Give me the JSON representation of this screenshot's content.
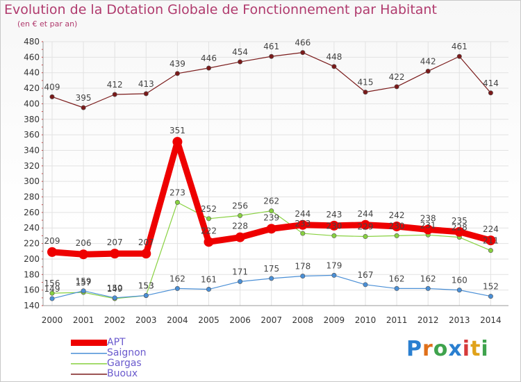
{
  "title": "Evolution de la Dotation Globale de Fonctionnement par Habitant",
  "subtitle": "(en € et par an)",
  "brand": {
    "text": "Proxiti",
    "letters": [
      "P",
      "r",
      "o",
      "x",
      "i",
      "t",
      "i"
    ],
    "colors": [
      "#2a7fd0",
      "#e0701a",
      "#3fa34d",
      "#2a7fd0",
      "#d63a3a",
      "#e0a21a",
      "#3fa34d"
    ]
  },
  "chart_data": {
    "type": "line",
    "title": "Evolution de la Dotation Globale de Fonctionnement par Habitant",
    "subtitle": "(en € et par an)",
    "xlabel": "",
    "ylabel": "",
    "x": [
      "2000",
      "2001",
      "2002",
      "2003",
      "2004",
      "2005",
      "2006",
      "2007",
      "2008",
      "2009",
      "2010",
      "2011",
      "2012",
      "2013",
      "2014"
    ],
    "ylim": [
      140,
      480
    ],
    "yticks": [
      140,
      160,
      180,
      200,
      220,
      240,
      260,
      280,
      300,
      320,
      340,
      360,
      380,
      400,
      420,
      440,
      460,
      480
    ],
    "grid": true,
    "legend": "bottom-left",
    "series": [
      {
        "name": "APT",
        "color": "#ee0000",
        "values": [
          209,
          206,
          207,
          207,
          351,
          222,
          228,
          239,
          244,
          243,
          244,
          242,
          238,
          235,
          224
        ],
        "labels": [
          "209",
          "206",
          "207",
          "207",
          "351",
          "222",
          "228",
          "239",
          "244",
          "243",
          "244",
          "242",
          "238",
          "235",
          "224"
        ]
      },
      {
        "name": "Saignon",
        "color": "#4a8fd6",
        "values": [
          149,
          159,
          150,
          153,
          162,
          161,
          171,
          175,
          178,
          179,
          167,
          162,
          162,
          160,
          152
        ],
        "labels": [
          "149",
          "159",
          "150",
          "153",
          "162",
          "161",
          "171",
          "175",
          "178",
          "179",
          "167",
          "162",
          "162",
          "160",
          "152"
        ]
      },
      {
        "name": "Gargas",
        "color": "#88d140",
        "values": [
          156,
          157,
          149,
          153,
          273,
          252,
          256,
          262,
          233,
          230,
          229,
          230,
          231,
          228,
          211
        ],
        "labels": [
          "156",
          "157",
          "149",
          "153",
          "273",
          "252",
          "256",
          "262",
          "233",
          "230",
          "229",
          "230",
          "231",
          "228",
          "211"
        ]
      },
      {
        "name": "Buoux",
        "color": "#7a1a1a",
        "values": [
          409,
          395,
          412,
          413,
          439,
          446,
          454,
          461,
          466,
          448,
          415,
          422,
          442,
          461,
          414
        ],
        "labels": [
          "409",
          "395",
          "412",
          "413",
          "439",
          "446",
          "454",
          "461",
          "466",
          "448",
          "415",
          "422",
          "442",
          "461",
          "414"
        ]
      }
    ]
  }
}
